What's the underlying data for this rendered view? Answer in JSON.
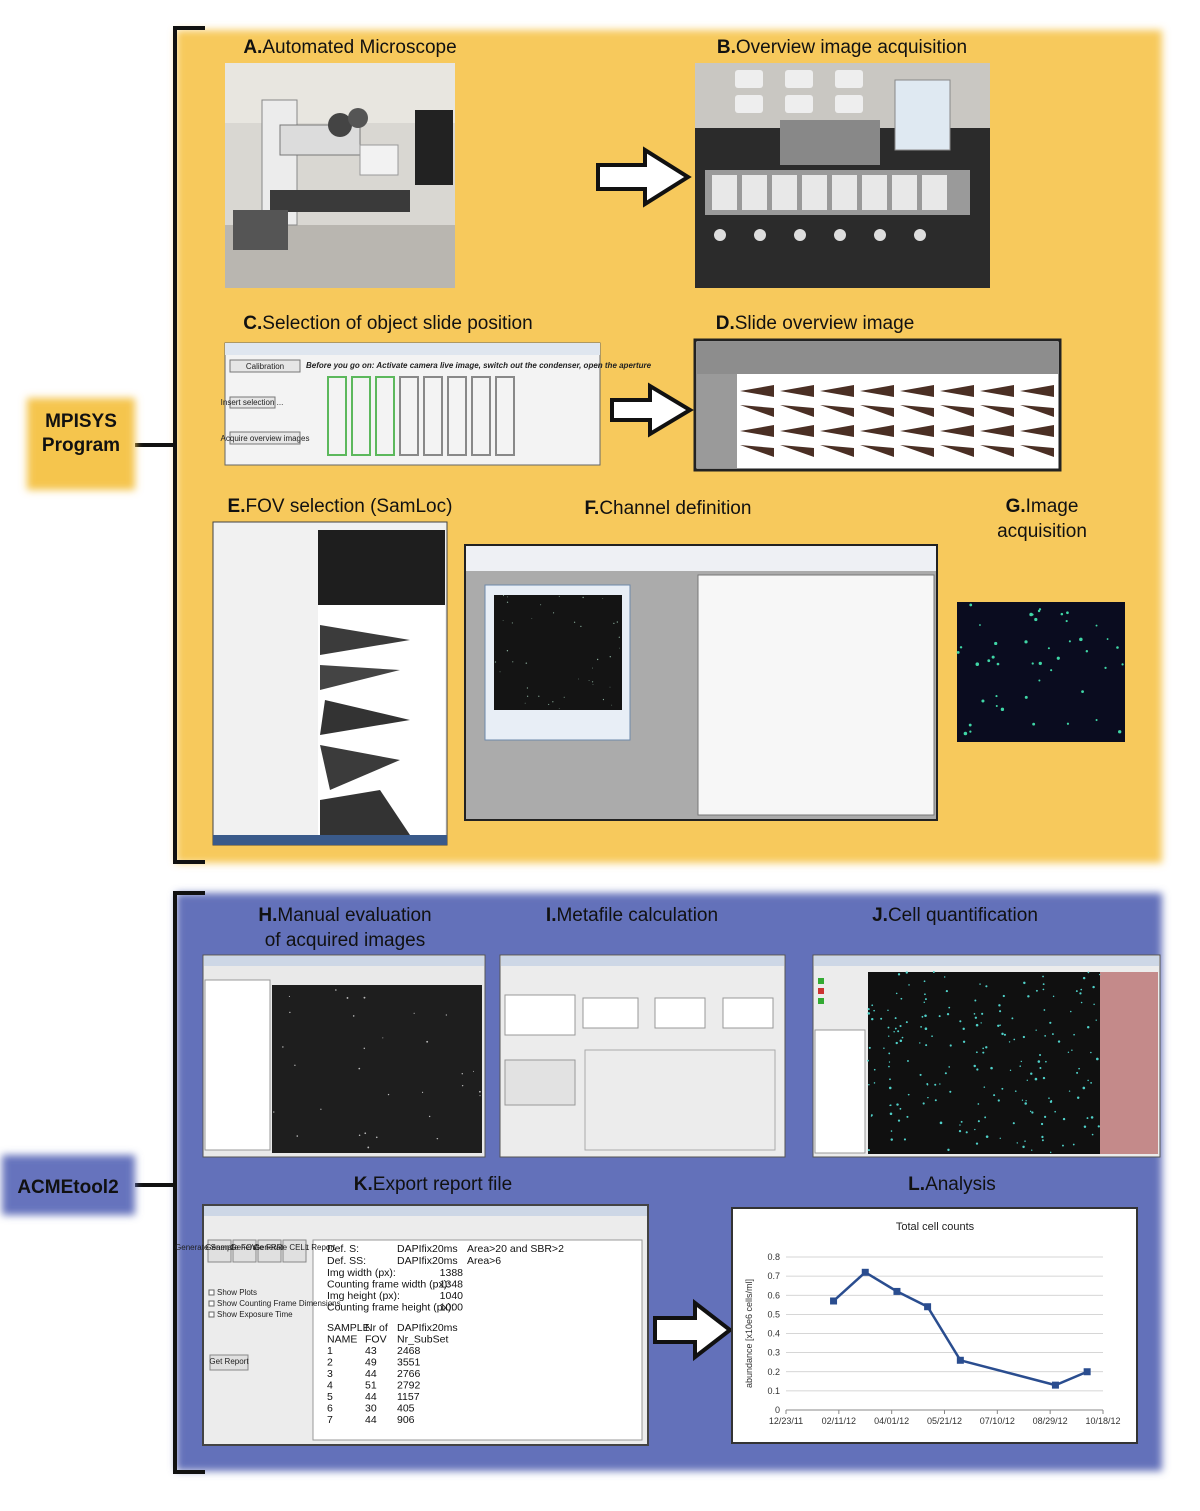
{
  "groups": [
    {
      "label_lines": [
        "MPISYS",
        "Program"
      ]
    },
    {
      "label_lines": [
        "ACMEtool2"
      ]
    }
  ],
  "panels": [
    {
      "letter": "A.",
      "lines": [
        "Automated Microscope"
      ]
    },
    {
      "letter": "B.",
      "lines": [
        "Overview image acquisition"
      ]
    },
    {
      "letter": "C.",
      "lines": [
        "Selection of object slide position"
      ]
    },
    {
      "letter": "D.",
      "lines": [
        "Slide overview image"
      ]
    },
    {
      "letter": "E.",
      "lines": [
        "FOV selection (SamLoc)"
      ]
    },
    {
      "letter": "F.",
      "lines": [
        "Channel definition"
      ]
    },
    {
      "letter": "G.",
      "lines": [
        "Image",
        "acquisition"
      ]
    },
    {
      "letter": "H.",
      "lines": [
        "Manual evaluation",
        "of acquired images"
      ]
    },
    {
      "letter": "I.",
      "lines": [
        "Metafile calculation"
      ]
    },
    {
      "letter": "J.",
      "lines": [
        "Cell quantification"
      ]
    },
    {
      "letter": "K.",
      "lines": [
        "Export report file"
      ]
    },
    {
      "letter": "L.",
      "lines": [
        "Analysis"
      ]
    }
  ],
  "panel_c": {
    "calibration": "Calibration",
    "instruction": "Before you go on: Activate camera live image, switch out the condenser, open the aperture",
    "insert": "Insert selection ...",
    "acquire": "Acquire overview images"
  },
  "panel_k": {
    "buttons": [
      "Generate Sample Report",
      "Generate FOV Report",
      "Generate FRR Report",
      "Generate CELL Report"
    ],
    "options": [
      "Show Plots",
      "Show Counting Frame Dimensions",
      "Show Exposure Time"
    ],
    "get_report": "Get Report",
    "definitions": [
      {
        "key": "Def.  S:",
        "channel": "DAPIfix20ms",
        "rule": "Area>20 and SBR>2"
      },
      {
        "key": "Def.  SS:",
        "channel": "DAPIfix20ms",
        "rule": "Area>6"
      }
    ],
    "dimensions": [
      {
        "label": "Img width (px):",
        "value": 1388
      },
      {
        "label": "Counting frame width (px):",
        "value": 1348
      },
      {
        "label": "Img height (px):",
        "value": 1040
      },
      {
        "label": "Counting frame height (px):",
        "value": 1000
      }
    ],
    "table": {
      "header": [
        [
          "SAMPLE",
          "NAME"
        ],
        [
          "Nr of",
          "FOV"
        ],
        [
          "DAPIfix20ms",
          "Nr_SubSet"
        ]
      ],
      "rows": [
        [
          1,
          43,
          2468
        ],
        [
          2,
          49,
          3551
        ],
        [
          3,
          44,
          2766
        ],
        [
          4,
          51,
          2792
        ],
        [
          5,
          44,
          1157
        ],
        [
          6,
          30,
          405
        ],
        [
          7,
          44,
          906
        ]
      ]
    }
  },
  "chart_data": {
    "type": "line",
    "title": "Total cell counts",
    "y_label": "abundance [x10e6 cells/ml]",
    "x": [
      "02/06/12",
      "03/07/12",
      "04/06/12",
      "05/05/12",
      "06/05/12",
      "09/03/12",
      "10/03/12"
    ],
    "series": [
      {
        "name": "Total cell counts",
        "color": "#2a4d8f",
        "values": [
          0.57,
          0.72,
          0.62,
          0.54,
          0.26,
          0.13,
          0.2
        ]
      }
    ],
    "xlim": [
      "12/23/11",
      "10/18/12"
    ],
    "xticks": [
      "12/23/11",
      "02/11/12",
      "04/01/12",
      "05/21/12",
      "07/10/12",
      "08/29/12",
      "10/18/12"
    ],
    "ylim": [
      0,
      0.8
    ],
    "yticks": [
      0,
      0.1,
      0.2,
      0.3,
      0.4,
      0.5,
      0.6,
      0.7,
      0.8
    ],
    "grid": true
  }
}
